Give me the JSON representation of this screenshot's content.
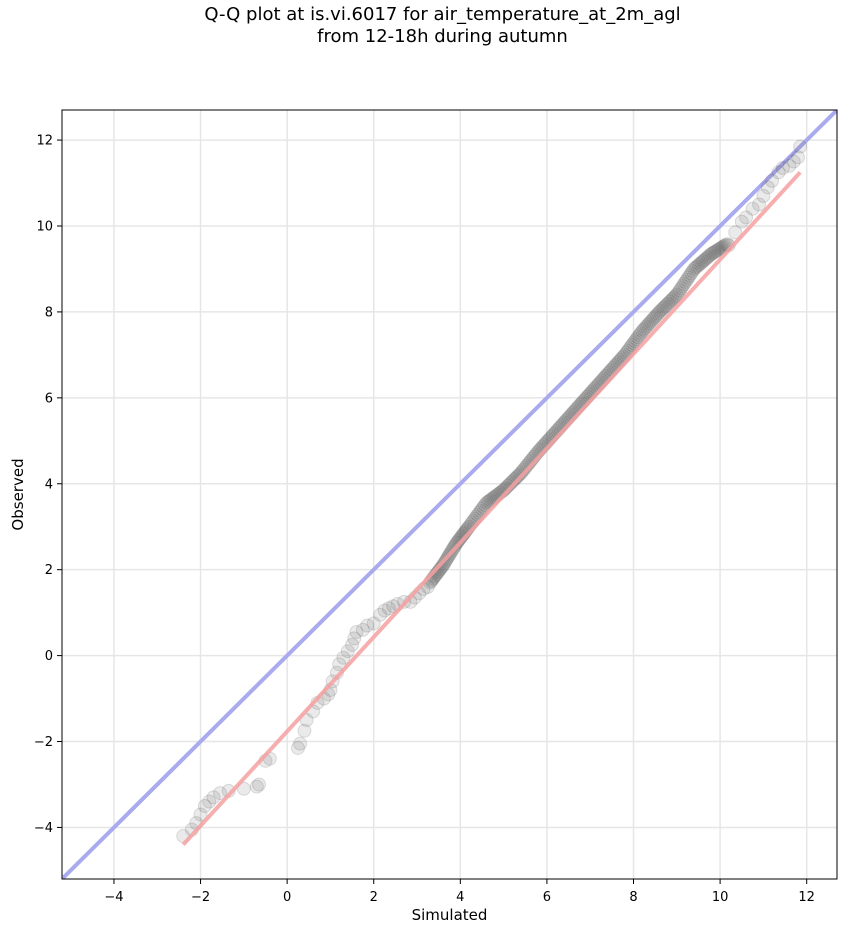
{
  "chart_data": {
    "type": "scatter",
    "title_line1": "Q-Q plot at is.vi.6017 for air_temperature_at_2m_agl",
    "title_line2": "from 12-18h during autumn",
    "xlabel": "Simulated",
    "ylabel": "Observed",
    "xlim": [
      -5.2,
      12.7
    ],
    "ylim": [
      -5.2,
      12.7
    ],
    "xticks": [
      -4,
      -2,
      0,
      2,
      4,
      6,
      8,
      10,
      12
    ],
    "yticks": [
      -4,
      -2,
      0,
      2,
      4,
      6,
      8,
      10,
      12
    ],
    "grid": true,
    "colors": {
      "points": "#555555",
      "identity_line": "#aaaaee",
      "fit_line": "#f4a0a0",
      "grid": "#e6e6e6"
    },
    "identity_line": {
      "x": [
        -5.2,
        12.7
      ],
      "y": [
        -5.2,
        12.7
      ]
    },
    "fit_line": {
      "x": [
        -2.4,
        11.85
      ],
      "y": [
        -4.4,
        11.25
      ]
    },
    "tail_points": [
      {
        "x": -2.4,
        "y": -4.2
      },
      {
        "x": -2.2,
        "y": -4.05
      },
      {
        "x": -2.1,
        "y": -3.9
      },
      {
        "x": -2.0,
        "y": -3.7
      },
      {
        "x": -1.9,
        "y": -3.5
      },
      {
        "x": -1.8,
        "y": -3.4
      },
      {
        "x": -1.7,
        "y": -3.3
      },
      {
        "x": -1.55,
        "y": -3.2
      },
      {
        "x": -1.35,
        "y": -3.15
      },
      {
        "x": -1.0,
        "y": -3.1
      },
      {
        "x": -0.7,
        "y": -3.05
      },
      {
        "x": -0.65,
        "y": -3.0
      },
      {
        "x": -0.5,
        "y": -2.45
      },
      {
        "x": -0.4,
        "y": -2.4
      },
      {
        "x": 0.25,
        "y": -2.15
      },
      {
        "x": 0.3,
        "y": -2.05
      },
      {
        "x": 0.4,
        "y": -1.75
      },
      {
        "x": 0.45,
        "y": -1.5
      },
      {
        "x": 0.6,
        "y": -1.3
      },
      {
        "x": 0.7,
        "y": -1.1
      },
      {
        "x": 0.85,
        "y": -1.0
      },
      {
        "x": 0.95,
        "y": -0.9
      },
      {
        "x": 1.0,
        "y": -0.8
      },
      {
        "x": 1.05,
        "y": -0.6
      },
      {
        "x": 1.15,
        "y": -0.4
      },
      {
        "x": 1.2,
        "y": -0.2
      },
      {
        "x": 1.3,
        "y": -0.05
      },
      {
        "x": 1.4,
        "y": 0.1
      },
      {
        "x": 1.5,
        "y": 0.25
      },
      {
        "x": 1.55,
        "y": 0.4
      },
      {
        "x": 1.6,
        "y": 0.55
      },
      {
        "x": 1.75,
        "y": 0.6
      },
      {
        "x": 1.85,
        "y": 0.7
      },
      {
        "x": 2.0,
        "y": 0.75
      },
      {
        "x": 2.15,
        "y": 0.95
      },
      {
        "x": 2.25,
        "y": 1.05
      },
      {
        "x": 2.35,
        "y": 1.1
      },
      {
        "x": 2.45,
        "y": 1.15
      },
      {
        "x": 2.55,
        "y": 1.2
      },
      {
        "x": 2.7,
        "y": 1.25
      },
      {
        "x": 2.85,
        "y": 1.25
      },
      {
        "x": 2.95,
        "y": 1.35
      },
      {
        "x": 3.05,
        "y": 1.45
      },
      {
        "x": 3.15,
        "y": 1.55
      },
      {
        "x": 3.25,
        "y": 1.6
      }
    ],
    "upper_tail_points": [
      {
        "x": 10.2,
        "y": 9.55
      },
      {
        "x": 10.35,
        "y": 9.85
      },
      {
        "x": 10.5,
        "y": 10.1
      },
      {
        "x": 10.6,
        "y": 10.2
      },
      {
        "x": 10.75,
        "y": 10.4
      },
      {
        "x": 10.9,
        "y": 10.5
      },
      {
        "x": 11.0,
        "y": 10.7
      },
      {
        "x": 11.1,
        "y": 10.9
      },
      {
        "x": 11.2,
        "y": 11.05
      },
      {
        "x": 11.35,
        "y": 11.25
      },
      {
        "x": 11.45,
        "y": 11.35
      },
      {
        "x": 11.6,
        "y": 11.4
      },
      {
        "x": 11.7,
        "y": 11.5
      },
      {
        "x": 11.8,
        "y": 11.6
      },
      {
        "x": 11.85,
        "y": 11.85
      }
    ],
    "dense_body_knots": {
      "x": [
        3.3,
        3.6,
        3.9,
        4.2,
        4.6,
        5.0,
        5.4,
        5.8,
        6.2,
        6.6,
        7.0,
        7.4,
        7.8,
        8.2,
        8.6,
        9.0,
        9.4,
        9.8,
        10.2
      ],
      "y": [
        1.7,
        2.1,
        2.6,
        3.0,
        3.55,
        3.85,
        4.25,
        4.75,
        5.2,
        5.65,
        6.1,
        6.55,
        7.0,
        7.55,
        8.0,
        8.4,
        9.0,
        9.35,
        9.6
      ]
    }
  }
}
